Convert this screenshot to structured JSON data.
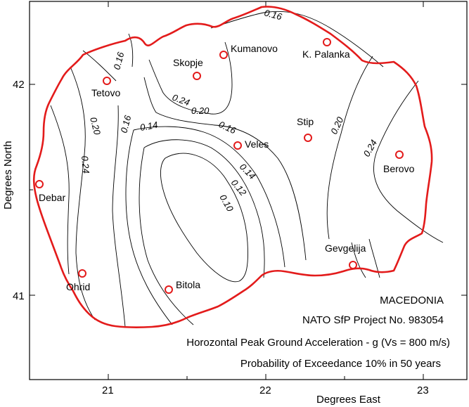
{
  "map": {
    "x_axis": {
      "label": "Degrees East",
      "ticks": [
        "21",
        "22",
        "23"
      ]
    },
    "y_axis": {
      "label": "Degrees North",
      "ticks": [
        "42",
        "41"
      ]
    },
    "border_color": "#e31b1b",
    "marker_color": "#e31b1b",
    "contour_color": "#000000",
    "cities": [
      {
        "name": "Skopje"
      },
      {
        "name": "Kumanovo"
      },
      {
        "name": "K. Palanka"
      },
      {
        "name": "Tetovo"
      },
      {
        "name": "Stip"
      },
      {
        "name": "Veles"
      },
      {
        "name": "Berovo"
      },
      {
        "name": "Debar"
      },
      {
        "name": "Gevgelija"
      },
      {
        "name": "Ohrid"
      },
      {
        "name": "Bitola"
      }
    ],
    "contour_labels": [
      "0.16",
      "0.16",
      "0.24",
      "0.20",
      "0.20",
      "0.16",
      "0.14",
      "0.16",
      "0.14",
      "0.12",
      "0.10",
      "0.24",
      "0.20",
      "0.24"
    ],
    "info": {
      "region": "MACEDONIA",
      "project": "NATO SfP Project No. 983054",
      "quantity": "Horozontal Peak Ground Acceleration - g (Vs = 800 m/s)",
      "probability": "Probability of Exceedance 10% in 50 years"
    }
  }
}
